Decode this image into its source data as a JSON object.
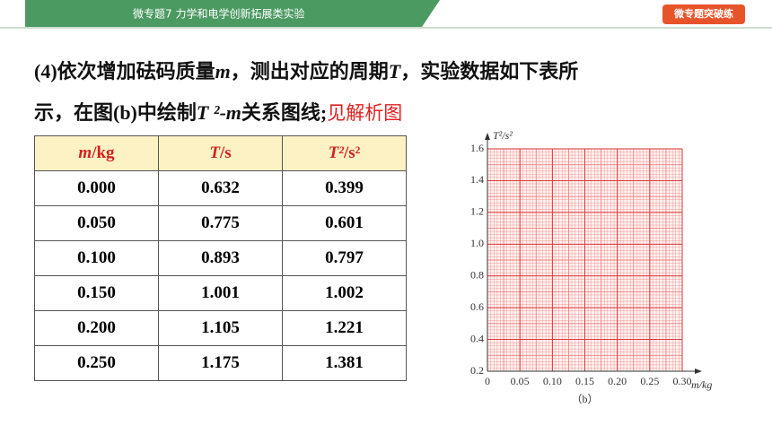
{
  "header": {
    "topic": "微专题7    力学和电学创新拓展类实验",
    "badge": "微专题突破练"
  },
  "question": {
    "line1": [
      "(4)依次增加砝码质量",
      "m",
      "，测出对应的周期",
      "T",
      "，实验数据如下表所"
    ],
    "line2": [
      "示，在图(b)中绘制",
      "T ²",
      "-",
      "m",
      "关系图线;"
    ],
    "answer": "见解析图"
  },
  "table": {
    "header": [
      "m",
      "/kg",
      "T",
      "/s",
      "T²",
      "/s²"
    ],
    "rows": [
      [
        "0.000",
        "0.632",
        "0.399"
      ],
      [
        "0.050",
        "0.775",
        "0.601"
      ],
      [
        "0.100",
        "0.893",
        "0.797"
      ],
      [
        "0.150",
        "1.001",
        "1.002"
      ],
      [
        "0.200",
        "1.105",
        "1.221"
      ],
      [
        "0.250",
        "1.175",
        "1.381"
      ]
    ]
  },
  "graph": {
    "y_label": "T²/s²",
    "x_label": "m/kg",
    "caption": "（b）",
    "xlim": [
      0,
      0.3
    ],
    "ylim": [
      0.2,
      1.6
    ],
    "xticks": [
      0,
      0.05,
      {
        "value": 0.1,
        "label": "0.10"
      },
      0.15,
      {
        "value": 0.2,
        "label": "0.20"
      },
      0.25,
      {
        "value": 0.3,
        "label": "0.30"
      }
    ],
    "yticks": [
      0.2,
      0.4,
      0.6,
      0.8,
      {
        "value": 1,
        "label": "1.0"
      },
      1.2,
      1.4,
      1.6
    ]
  }
}
